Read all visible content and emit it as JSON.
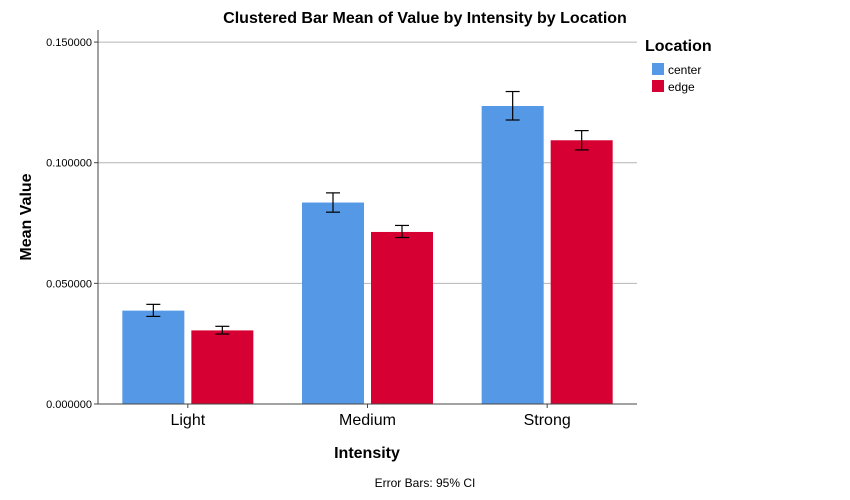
{
  "chart_data": {
    "type": "bar",
    "title": "Clustered Bar Mean of Value by Intensity by Location",
    "xlabel": "Intensity",
    "ylabel": "Mean Value",
    "categories": [
      "Light",
      "Medium",
      "Strong"
    ],
    "ylim": [
      0,
      0.155
    ],
    "yticks": [
      0,
      0.05,
      0.1,
      0.15
    ],
    "ytick_labels": [
      "0.000000",
      "0.050000",
      "0.100000",
      "0.150000"
    ],
    "grid": true,
    "legend": {
      "title": "Location",
      "position": "right"
    },
    "series": [
      {
        "name": "center",
        "color": "#5599e6",
        "values": [
          0.0387,
          0.0835,
          0.1235
        ],
        "ci_lower": [
          0.0363,
          0.0795,
          0.1177
        ],
        "ci_upper": [
          0.0413,
          0.0875,
          0.1295
        ]
      },
      {
        "name": "edge",
        "color": "#d60032",
        "values": [
          0.0305,
          0.0713,
          0.1093
        ],
        "ci_lower": [
          0.029,
          0.069,
          0.1053
        ],
        "ci_upper": [
          0.0322,
          0.074,
          0.1133
        ]
      }
    ],
    "footnote": "Error Bars: 95% CI"
  }
}
